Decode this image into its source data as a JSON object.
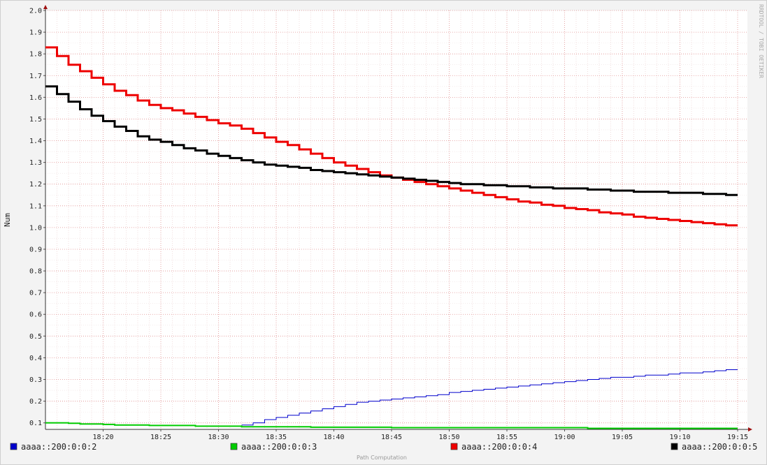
{
  "chart_data": {
    "type": "line",
    "title": "",
    "xlabel": "",
    "ylabel": "Num",
    "footer": "Path Computation",
    "watermark": "RRDTOOL / TOBI OETIKER",
    "x_ticks": [
      "18:20",
      "18:25",
      "18:30",
      "18:35",
      "18:40",
      "18:45",
      "18:50",
      "18:55",
      "19:00",
      "19:05",
      "19:10",
      "19:15"
    ],
    "y_ticks": [
      "0.1",
      "0.2",
      "0.3",
      "0.4",
      "0.5",
      "0.6",
      "0.7",
      "0.8",
      "0.9",
      "1.0",
      "1.1",
      "1.2",
      "1.3",
      "1.4",
      "1.5",
      "1.6",
      "1.7",
      "1.8",
      "1.9",
      "2.0"
    ],
    "xlim": [
      "18:15",
      "19:15"
    ],
    "ylim": [
      0.07,
      2.0
    ],
    "grid": true,
    "legend_position": "bottom",
    "series": [
      {
        "name": "aaaa::200:0:0:2",
        "color": "#0000cc",
        "line_width": 1,
        "x": [
          "18:32",
          "18:33",
          "18:34",
          "18:35",
          "18:36",
          "18:37",
          "18:38",
          "18:39",
          "18:40",
          "18:41",
          "18:42",
          "18:43",
          "18:44",
          "18:45",
          "18:46",
          "18:47",
          "18:48",
          "18:49",
          "18:50",
          "18:51",
          "18:52",
          "18:53",
          "18:54",
          "18:55",
          "18:56",
          "18:57",
          "18:58",
          "18:59",
          "19:00",
          "19:01",
          "19:02",
          "19:03",
          "19:04",
          "19:05",
          "19:06",
          "19:07",
          "19:08",
          "19:09",
          "19:10",
          "19:11",
          "19:12",
          "19:13",
          "19:14",
          "19:15"
        ],
        "values": [
          0.09,
          0.1,
          0.115,
          0.125,
          0.135,
          0.145,
          0.155,
          0.165,
          0.175,
          0.185,
          0.195,
          0.2,
          0.205,
          0.21,
          0.215,
          0.22,
          0.225,
          0.23,
          0.24,
          0.245,
          0.25,
          0.255,
          0.26,
          0.265,
          0.27,
          0.275,
          0.28,
          0.285,
          0.29,
          0.295,
          0.3,
          0.305,
          0.31,
          0.31,
          0.315,
          0.32,
          0.32,
          0.325,
          0.33,
          0.33,
          0.335,
          0.34,
          0.345,
          0.345
        ]
      },
      {
        "name": "aaaa::200:0:0:3",
        "color": "#00cc00",
        "line_width": 2,
        "x": [
          "18:15",
          "18:16",
          "18:17",
          "18:18",
          "18:20",
          "18:21",
          "18:24",
          "18:28",
          "18:32",
          "18:38",
          "18:45",
          "19:02",
          "19:15"
        ],
        "values": [
          0.1,
          0.1,
          0.098,
          0.095,
          0.093,
          0.09,
          0.088,
          0.085,
          0.082,
          0.08,
          0.078,
          0.075,
          0.075
        ]
      },
      {
        "name": "aaaa::200:0:0:4",
        "color": "#ee0000",
        "line_width": 3,
        "x": [
          "18:15",
          "18:16",
          "18:17",
          "18:18",
          "18:19",
          "18:20",
          "18:21",
          "18:22",
          "18:23",
          "18:24",
          "18:25",
          "18:26",
          "18:27",
          "18:28",
          "18:29",
          "18:30",
          "18:31",
          "18:32",
          "18:33",
          "18:34",
          "18:35",
          "18:36",
          "18:37",
          "18:38",
          "18:39",
          "18:40",
          "18:41",
          "18:42",
          "18:43",
          "18:44",
          "18:45",
          "18:46",
          "18:47",
          "18:48",
          "18:49",
          "18:50",
          "18:51",
          "18:52",
          "18:53",
          "18:54",
          "18:55",
          "18:56",
          "18:57",
          "18:58",
          "18:59",
          "19:00",
          "19:01",
          "19:02",
          "19:03",
          "19:04",
          "19:05",
          "19:06",
          "19:07",
          "19:08",
          "19:09",
          "19:10",
          "19:11",
          "19:12",
          "19:13",
          "19:14",
          "19:15"
        ],
        "values": [
          1.83,
          1.79,
          1.75,
          1.72,
          1.69,
          1.66,
          1.63,
          1.61,
          1.585,
          1.565,
          1.55,
          1.54,
          1.525,
          1.51,
          1.495,
          1.48,
          1.47,
          1.455,
          1.435,
          1.415,
          1.395,
          1.38,
          1.36,
          1.34,
          1.32,
          1.3,
          1.285,
          1.27,
          1.255,
          1.24,
          1.23,
          1.22,
          1.21,
          1.2,
          1.19,
          1.18,
          1.17,
          1.16,
          1.15,
          1.14,
          1.13,
          1.12,
          1.115,
          1.105,
          1.1,
          1.09,
          1.085,
          1.08,
          1.07,
          1.065,
          1.06,
          1.05,
          1.045,
          1.04,
          1.035,
          1.03,
          1.025,
          1.02,
          1.015,
          1.01,
          1.01
        ]
      },
      {
        "name": "aaaa::200:0:0:5",
        "color": "#000000",
        "line_width": 3,
        "x": [
          "18:15",
          "18:16",
          "18:17",
          "18:18",
          "18:19",
          "18:20",
          "18:21",
          "18:22",
          "18:23",
          "18:24",
          "18:25",
          "18:26",
          "18:27",
          "18:28",
          "18:29",
          "18:30",
          "18:31",
          "18:32",
          "18:33",
          "18:34",
          "18:35",
          "18:36",
          "18:37",
          "18:38",
          "18:39",
          "18:40",
          "18:41",
          "18:42",
          "18:43",
          "18:44",
          "18:45",
          "18:46",
          "18:47",
          "18:48",
          "18:49",
          "18:50",
          "18:51",
          "18:52",
          "18:53",
          "18:54",
          "18:55",
          "18:56",
          "18:57",
          "18:58",
          "18:59",
          "19:00",
          "19:01",
          "19:02",
          "19:03",
          "19:04",
          "19:05",
          "19:06",
          "19:07",
          "19:08",
          "19:09",
          "19:10",
          "19:11",
          "19:12",
          "19:13",
          "19:14",
          "19:15"
        ],
        "values": [
          1.65,
          1.615,
          1.58,
          1.545,
          1.515,
          1.49,
          1.465,
          1.445,
          1.42,
          1.405,
          1.395,
          1.38,
          1.365,
          1.355,
          1.34,
          1.33,
          1.32,
          1.31,
          1.3,
          1.29,
          1.285,
          1.28,
          1.275,
          1.265,
          1.26,
          1.255,
          1.25,
          1.245,
          1.24,
          1.235,
          1.23,
          1.225,
          1.22,
          1.215,
          1.21,
          1.205,
          1.2,
          1.2,
          1.195,
          1.195,
          1.19,
          1.19,
          1.185,
          1.185,
          1.18,
          1.18,
          1.18,
          1.175,
          1.175,
          1.17,
          1.17,
          1.165,
          1.165,
          1.165,
          1.16,
          1.16,
          1.16,
          1.155,
          1.155,
          1.15,
          1.15
        ]
      }
    ]
  }
}
